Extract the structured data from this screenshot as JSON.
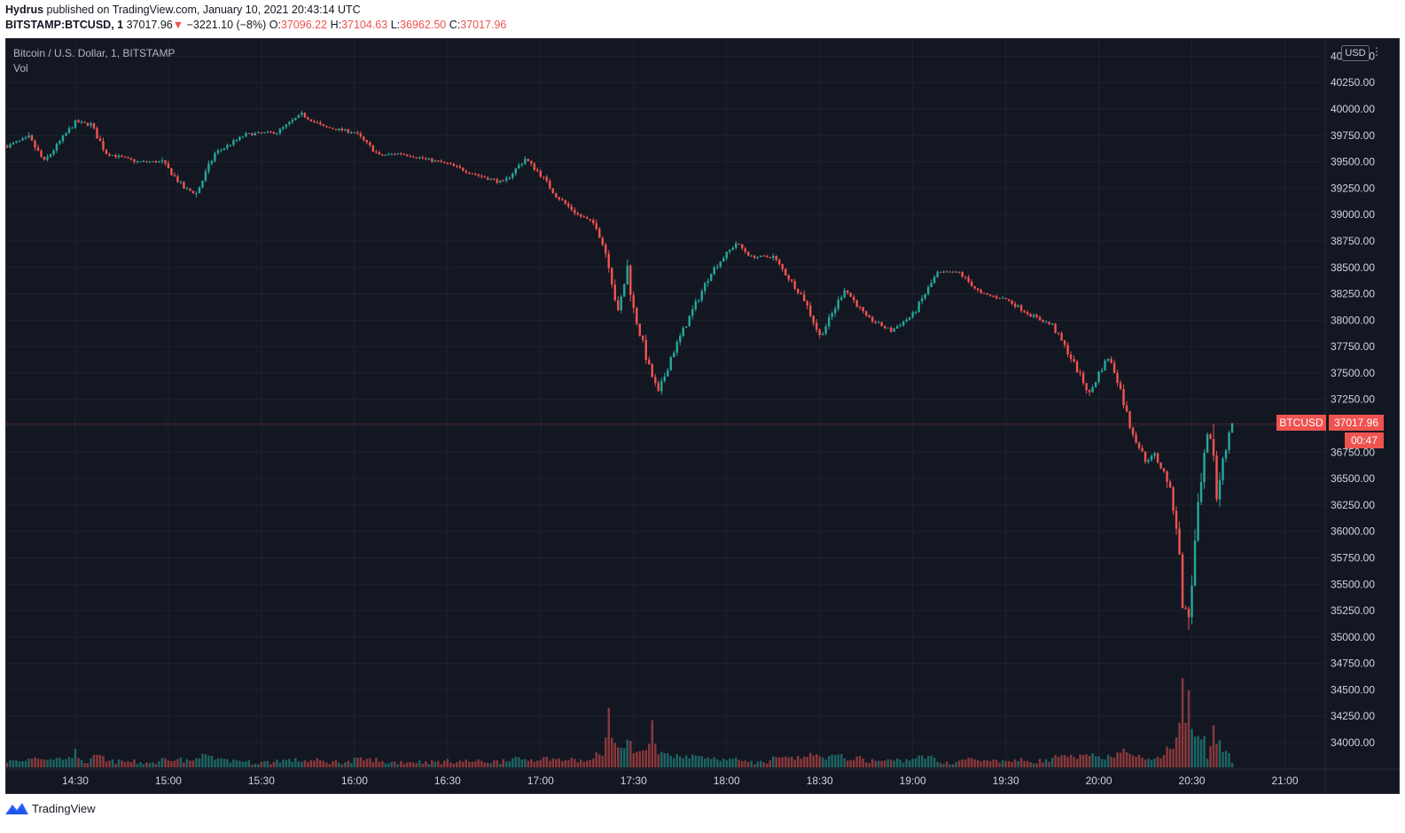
{
  "header": {
    "author": "Hydrus",
    "published_text": " published on TradingView.com, January 10, 2021 20:43:14 UTC",
    "symbol": "BITSTAMP:BTCUSD, 1",
    "last": "37017.96",
    "change": "−3221.10 (−8%)",
    "o_label": "O:",
    "o_val": "37096.22",
    "h_label": "H:",
    "h_val": "37104.63",
    "l_label": "L:",
    "l_val": "36962.50",
    "c_label": "C:",
    "c_val": "37017.96"
  },
  "legend": {
    "series": "Bitcoin / U.S. Dollar, 1, BITSTAMP",
    "volume": "Vol"
  },
  "axis": {
    "currency": "USD",
    "last_price": "37017.96",
    "symbol_tag": "BTCUSD",
    "countdown": "00:47"
  },
  "footer": {
    "brand": "TradingView"
  },
  "colors": {
    "up": "#26a69a",
    "down": "#ef5350",
    "background": "#131722",
    "grid": "#1e222d",
    "axis_text": "#d1d4dc"
  },
  "chart_data": {
    "type": "candlestick",
    "ylim": [
      33800,
      40500
    ],
    "y_ticks": [
      34000,
      34250,
      34500,
      34750,
      35000,
      35250,
      35500,
      35750,
      36000,
      36250,
      36500,
      36750,
      37000,
      37250,
      37500,
      37750,
      38000,
      38250,
      38500,
      38750,
      39000,
      39250,
      39500,
      39750,
      40000,
      40250,
      40500
    ],
    "y_tick_labels": [
      "34000.00",
      "34250.00",
      "34500.00",
      "34750.00",
      "35000.00",
      "35250.00",
      "35500.00",
      "35750.00",
      "36000.00",
      "36250.00",
      "36500.00",
      "36750.00",
      "37000.00",
      "37250.00",
      "37500.00",
      "37750.00",
      "38000.00",
      "38250.00",
      "38500.00",
      "38750.00",
      "39000.00",
      "39250.00",
      "39500.00",
      "39750.00",
      "40000.00",
      "40250.00",
      "40500.00"
    ],
    "x_range": [
      "14:08",
      "21:13"
    ],
    "x_ticks": [
      "14:30",
      "15:00",
      "15:30",
      "16:00",
      "16:30",
      "17:00",
      "17:30",
      "18:00",
      "18:30",
      "19:00",
      "19:30",
      "20:00",
      "20:30",
      "21:00"
    ],
    "last_price": 37017.96,
    "price_path": [
      [
        "14:08",
        39650
      ],
      [
        "14:15",
        39730
      ],
      [
        "14:20",
        39500
      ],
      [
        "14:30",
        39880
      ],
      [
        "14:35",
        39850
      ],
      [
        "14:40",
        39580
      ],
      [
        "14:50",
        39500
      ],
      [
        "14:58",
        39500
      ],
      [
        "15:05",
        39250
      ],
      [
        "15:09",
        39200
      ],
      [
        "15:15",
        39580
      ],
      [
        "15:25",
        39760
      ],
      [
        "15:35",
        39780
      ],
      [
        "15:43",
        39950
      ],
      [
        "15:50",
        39830
      ],
      [
        "16:00",
        39780
      ],
      [
        "16:08",
        39560
      ],
      [
        "16:15",
        39580
      ],
      [
        "16:30",
        39480
      ],
      [
        "16:40",
        39370
      ],
      [
        "16:48",
        39300
      ],
      [
        "16:55",
        39530
      ],
      [
        "17:00",
        39380
      ],
      [
        "17:05",
        39180
      ],
      [
        "17:12",
        39000
      ],
      [
        "17:18",
        38900
      ],
      [
        "17:22",
        38550
      ],
      [
        "17:25",
        38050
      ],
      [
        "17:28",
        38500
      ],
      [
        "17:30",
        38100
      ],
      [
        "17:35",
        37550
      ],
      [
        "17:38",
        37300
      ],
      [
        "17:42",
        37650
      ],
      [
        "17:48",
        38030
      ],
      [
        "17:55",
        38460
      ],
      [
        "18:00",
        38630
      ],
      [
        "18:03",
        38730
      ],
      [
        "18:08",
        38600
      ],
      [
        "18:15",
        38600
      ],
      [
        "18:20",
        38400
      ],
      [
        "18:25",
        38200
      ],
      [
        "18:30",
        37850
      ],
      [
        "18:33",
        38000
      ],
      [
        "18:38",
        38300
      ],
      [
        "18:45",
        38030
      ],
      [
        "18:53",
        37900
      ],
      [
        "19:00",
        38050
      ],
      [
        "19:08",
        38450
      ],
      [
        "19:15",
        38450
      ],
      [
        "19:22",
        38250
      ],
      [
        "19:30",
        38200
      ],
      [
        "19:38",
        38050
      ],
      [
        "19:45",
        37950
      ],
      [
        "19:50",
        37700
      ],
      [
        "19:57",
        37300
      ],
      [
        "20:00",
        37500
      ],
      [
        "20:03",
        37650
      ],
      [
        "20:06",
        37450
      ],
      [
        "20:10",
        37000
      ],
      [
        "20:15",
        36670
      ],
      [
        "20:18",
        36720
      ],
      [
        "20:22",
        36500
      ],
      [
        "20:25",
        36100
      ],
      [
        "20:27",
        35300
      ],
      [
        "20:29",
        35200
      ],
      [
        "20:32",
        36200
      ],
      [
        "20:35",
        36900
      ],
      [
        "20:37",
        36800
      ],
      [
        "20:38",
        36300
      ],
      [
        "20:40",
        36700
      ],
      [
        "20:43",
        37017.96
      ]
    ],
    "volume_spikes": [
      [
        "14:30",
        0.15
      ],
      [
        "17:22",
        0.48
      ],
      [
        "17:36",
        0.38
      ],
      [
        "20:27",
        0.72
      ],
      [
        "20:29",
        0.62
      ],
      [
        "20:37",
        0.34
      ]
    ]
  }
}
